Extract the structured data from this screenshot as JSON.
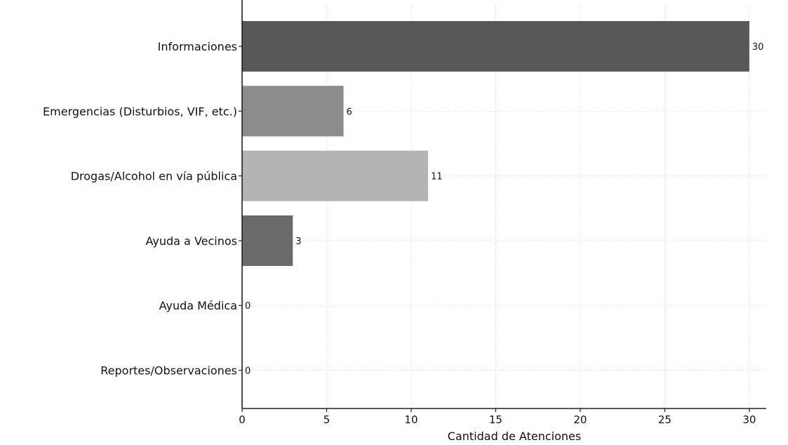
{
  "chart_data": {
    "type": "bar",
    "orientation": "horizontal",
    "categories": [
      "Informaciones",
      "Emergencias (Disturbios, VIF, etc.)",
      "Drogas/Alcohol en vía pública",
      "Ayuda a Vecinos",
      "Ayuda Médica",
      "Reportes/Observaciones"
    ],
    "values": [
      30,
      6,
      11,
      3,
      0,
      0
    ],
    "data_labels": [
      "30",
      "6",
      "11",
      "3",
      "0",
      "0"
    ],
    "bar_colors": [
      "#585858",
      "#8c8c8c",
      "#b4b4b4",
      "#6a6a6a",
      "#9a9a9a",
      "#9a9a9a"
    ],
    "xlabel": "Cantidad de Atenciones",
    "ylabel": "",
    "title": "",
    "xlim": [
      0,
      31
    ],
    "xticks": [
      0,
      5,
      10,
      15,
      20,
      25,
      30
    ],
    "xtick_labels": [
      "0",
      "5",
      "10",
      "15",
      "20",
      "25",
      "30"
    ],
    "grid": true,
    "legend": "none"
  }
}
